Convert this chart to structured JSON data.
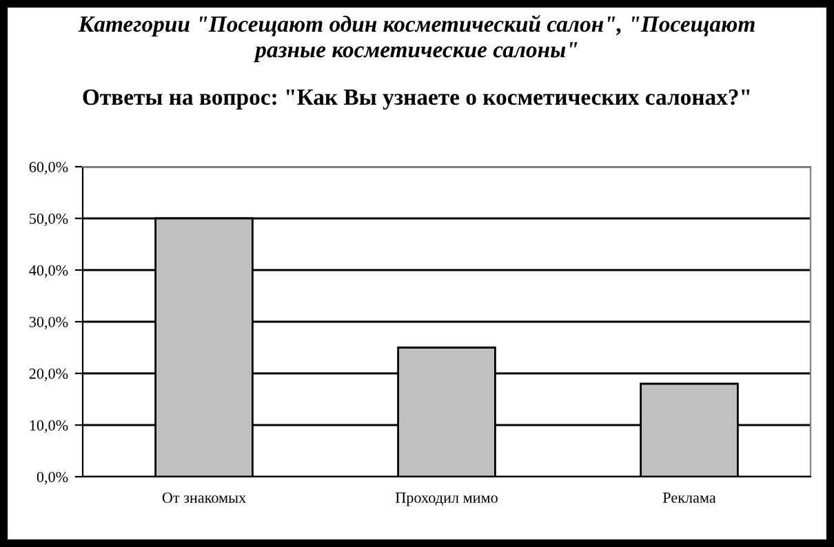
{
  "chart_data": {
    "type": "bar",
    "title": "Категории \"Посещают один косметический салон\", \"Посещают\nразные косметические салоны\"",
    "subtitle": "Ответы на вопрос: \"Как Вы узнаете о косметических салонах?\"",
    "categories": [
      "От знакомых",
      "Проходил мимо",
      "Реклама"
    ],
    "values": [
      50,
      25,
      18
    ],
    "color": "#c0c0c0",
    "ylim": [
      0,
      60
    ],
    "yticks": [
      {
        "value": 0,
        "label": "0,0%"
      },
      {
        "value": 10,
        "label": "10,0%"
      },
      {
        "value": 20,
        "label": "20,0%"
      },
      {
        "value": 30,
        "label": "30,0%"
      },
      {
        "value": 40,
        "label": "40,0%"
      },
      {
        "value": 50,
        "label": "50,0%"
      },
      {
        "value": 60,
        "label": "60,0%"
      }
    ],
    "grid": "y",
    "legend": false
  }
}
